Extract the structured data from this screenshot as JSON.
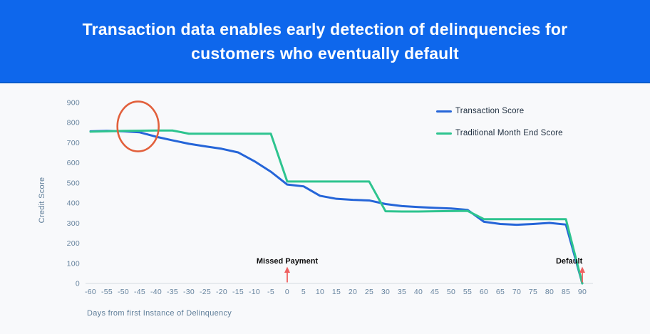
{
  "header": {
    "title_lines": [
      "Transaction data enables early detection of delinquencies for",
      "customers who eventually default"
    ]
  },
  "colors": {
    "header_bg": "#0e67ec",
    "header_border": "#0a5ccd",
    "page_bg": "#f8f9fb",
    "axis_line": "#d5dbe0",
    "tick_text": "#66839e",
    "legend_text": "#1d2d3e",
    "annotation_text": "#0c0c0c",
    "transaction_line": "#2565d8",
    "traditional_line": "#2ec48f",
    "highlight_circle": "#e2603c",
    "event_arrow": "#ef6060"
  },
  "chart_data": {
    "type": "line",
    "x": [
      -60,
      -55,
      -50,
      -45,
      -40,
      -35,
      -30,
      -25,
      -20,
      -15,
      -10,
      -5,
      0,
      5,
      10,
      15,
      20,
      25,
      30,
      35,
      40,
      45,
      50,
      55,
      60,
      65,
      70,
      75,
      80,
      85,
      90
    ],
    "series": [
      {
        "name": "Transaction Score",
        "color": "#2565d8",
        "values": [
          757,
          759,
          757,
          752,
          730,
          712,
          695,
          682,
          670,
          652,
          608,
          556,
          492,
          483,
          436,
          421,
          416,
          413,
          395,
          385,
          380,
          376,
          373,
          366,
          307,
          296,
          292,
          296,
          301,
          293,
          0
        ]
      },
      {
        "name": "Traditional Month End Score",
        "color": "#2ec48f",
        "values": [
          755,
          757,
          759,
          760,
          761,
          761,
          745,
          745,
          745,
          745,
          745,
          745,
          507,
          507,
          507,
          507,
          507,
          507,
          359,
          358,
          358,
          359,
          360,
          361,
          320,
          320,
          320,
          320,
          320,
          320,
          0
        ]
      }
    ],
    "xlabel": "Days from first Instance of Delinquency",
    "ylabel": "Credit Score",
    "xlim": [
      -60,
      90
    ],
    "ylim": [
      0,
      900
    ],
    "yticks": [
      0,
      100,
      200,
      300,
      400,
      500,
      600,
      700,
      800,
      900
    ],
    "grid": false,
    "legend_position": "top-right",
    "annotations": {
      "highlight_ellipse": {
        "x_day": -45.5,
        "y_score": 781,
        "rx_days": 6.3,
        "ry_score": 124,
        "color": "#e2603c"
      },
      "events": [
        {
          "text": "Missed Payment",
          "x_day": 0,
          "text_x_day": 0,
          "arrow_color": "#ef6060"
        },
        {
          "text": "Default",
          "x_day": 90,
          "text_x_day": 86,
          "arrow_color": "#ef6060"
        }
      ]
    }
  }
}
